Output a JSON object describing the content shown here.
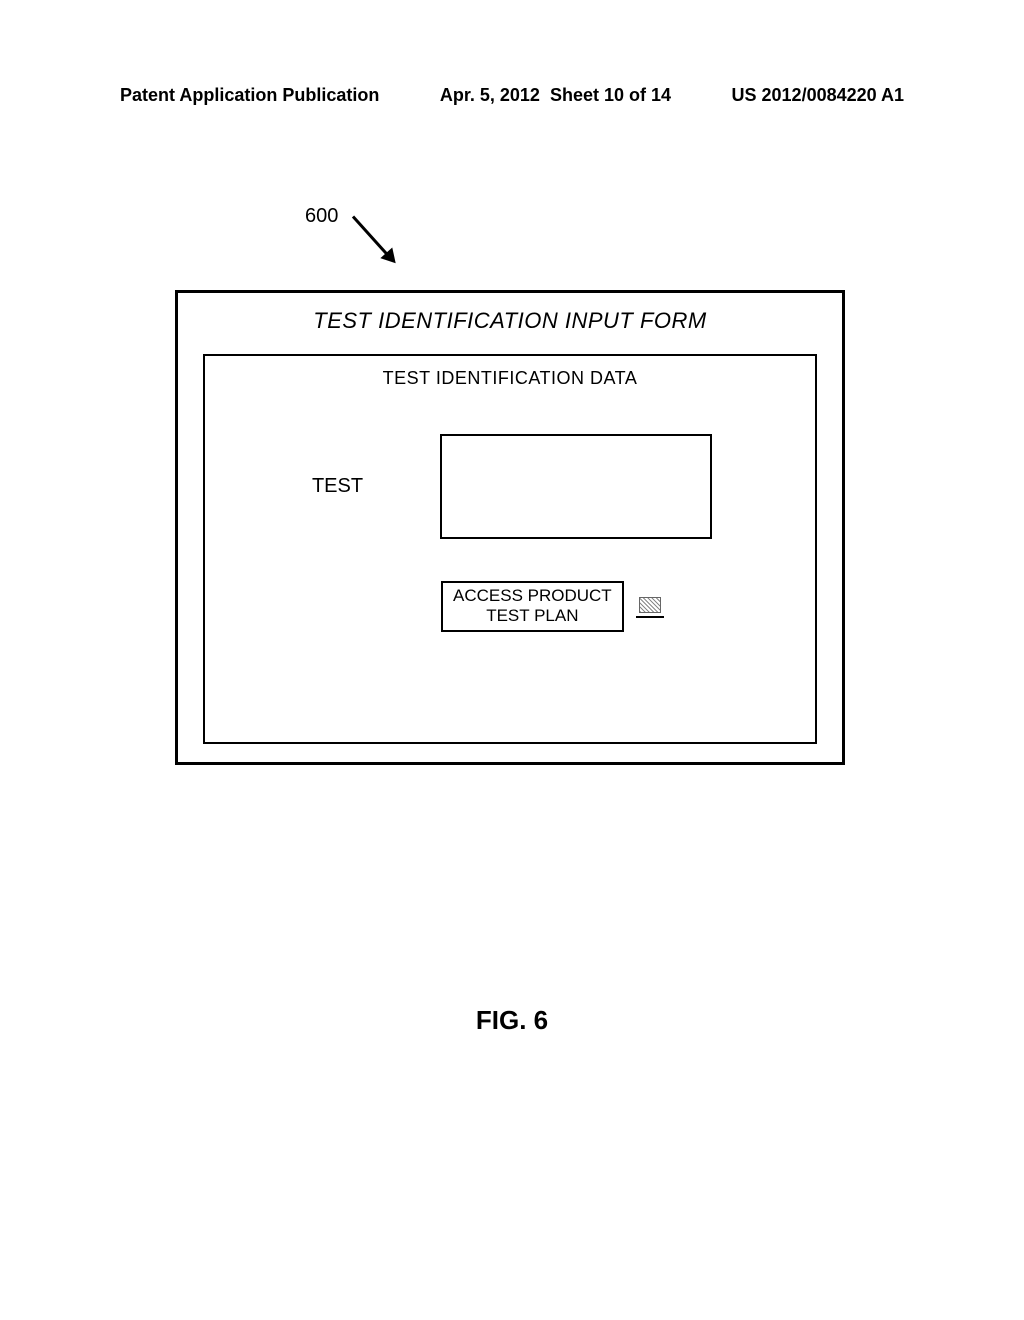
{
  "header": {
    "left": "Patent Application Publication",
    "center_date": "Apr. 5, 2012",
    "center_sheet": "Sheet 10 of 14",
    "right": "US 2012/0084220 A1"
  },
  "reference": {
    "number": "600"
  },
  "form": {
    "title": "TEST IDENTIFICATION INPUT FORM",
    "subtitle": "TEST IDENTIFICATION DATA",
    "field_label": "TEST",
    "button_line1": "ACCESS PRODUCT",
    "button_line2": "TEST PLAN"
  },
  "figure": {
    "label": "FIG. 6"
  }
}
